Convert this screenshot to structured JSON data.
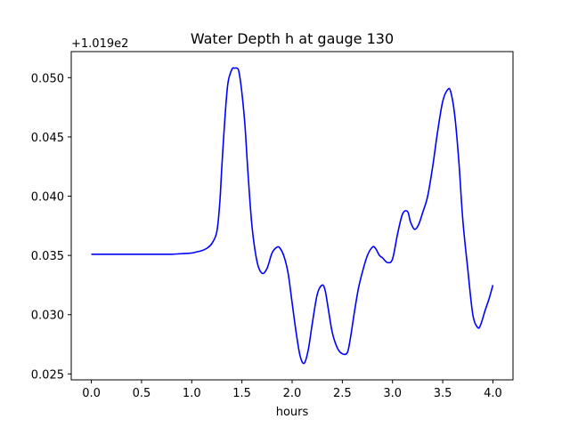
{
  "chart_data": {
    "type": "line",
    "title": "Water Depth h at gauge 130",
    "xlabel": "hours",
    "ylabel": "",
    "offset_label": "+1.019e2",
    "xlim": [
      -0.2,
      4.2
    ],
    "ylim": [
      0.0245,
      0.0522
    ],
    "xticks": [
      0.0,
      0.5,
      1.0,
      1.5,
      2.0,
      2.5,
      3.0,
      3.5,
      4.0
    ],
    "xtick_labels": [
      "0.0",
      "0.5",
      "1.0",
      "1.5",
      "2.0",
      "2.5",
      "3.0",
      "3.5",
      "4.0"
    ],
    "yticks": [
      0.025,
      0.03,
      0.035,
      0.04,
      0.045,
      0.05
    ],
    "ytick_labels": [
      "0.025",
      "0.030",
      "0.035",
      "0.040",
      "0.045",
      "0.050"
    ],
    "grid": false,
    "series": [
      {
        "color": "#0000ff",
        "x": [
          0.0,
          0.2,
          0.4,
          0.6,
          0.8,
          0.9,
          1.0,
          1.05,
          1.1,
          1.15,
          1.2,
          1.25,
          1.28,
          1.3,
          1.33,
          1.36,
          1.4,
          1.43,
          1.45,
          1.47,
          1.5,
          1.53,
          1.56,
          1.6,
          1.65,
          1.7,
          1.75,
          1.8,
          1.85,
          1.88,
          1.92,
          1.96,
          2.0,
          2.04,
          2.08,
          2.12,
          2.16,
          2.2,
          2.25,
          2.3,
          2.33,
          2.36,
          2.4,
          2.45,
          2.5,
          2.55,
          2.58,
          2.62,
          2.66,
          2.7,
          2.75,
          2.8,
          2.83,
          2.87,
          2.9,
          2.95,
          3.0,
          3.05,
          3.1,
          3.15,
          3.18,
          3.22,
          3.26,
          3.3,
          3.35,
          3.4,
          3.45,
          3.5,
          3.55,
          3.58,
          3.62,
          3.66,
          3.7,
          3.75,
          3.8,
          3.85,
          3.88,
          3.92,
          3.96,
          4.0
        ],
        "y": [
          0.0351,
          0.0351,
          0.0351,
          0.0351,
          0.0351,
          0.03515,
          0.0352,
          0.0353,
          0.0354,
          0.0356,
          0.036,
          0.037,
          0.0395,
          0.0425,
          0.0465,
          0.0495,
          0.0507,
          0.0508,
          0.0508,
          0.0505,
          0.0487,
          0.046,
          0.042,
          0.0375,
          0.0345,
          0.0335,
          0.0339,
          0.0352,
          0.0357,
          0.0356,
          0.0349,
          0.0335,
          0.031,
          0.0285,
          0.0265,
          0.0259,
          0.027,
          0.0292,
          0.0317,
          0.0325,
          0.032,
          0.0305,
          0.0285,
          0.0272,
          0.0267,
          0.0268,
          0.028,
          0.0302,
          0.0322,
          0.0336,
          0.035,
          0.0357,
          0.0356,
          0.035,
          0.0348,
          0.0344,
          0.0347,
          0.0368,
          0.0385,
          0.0387,
          0.0378,
          0.0372,
          0.0376,
          0.0386,
          0.04,
          0.0425,
          0.0455,
          0.048,
          0.049,
          0.0488,
          0.0468,
          0.043,
          0.038,
          0.0338,
          0.03,
          0.0289,
          0.0292,
          0.0303,
          0.0313,
          0.0325
        ]
      }
    ]
  }
}
